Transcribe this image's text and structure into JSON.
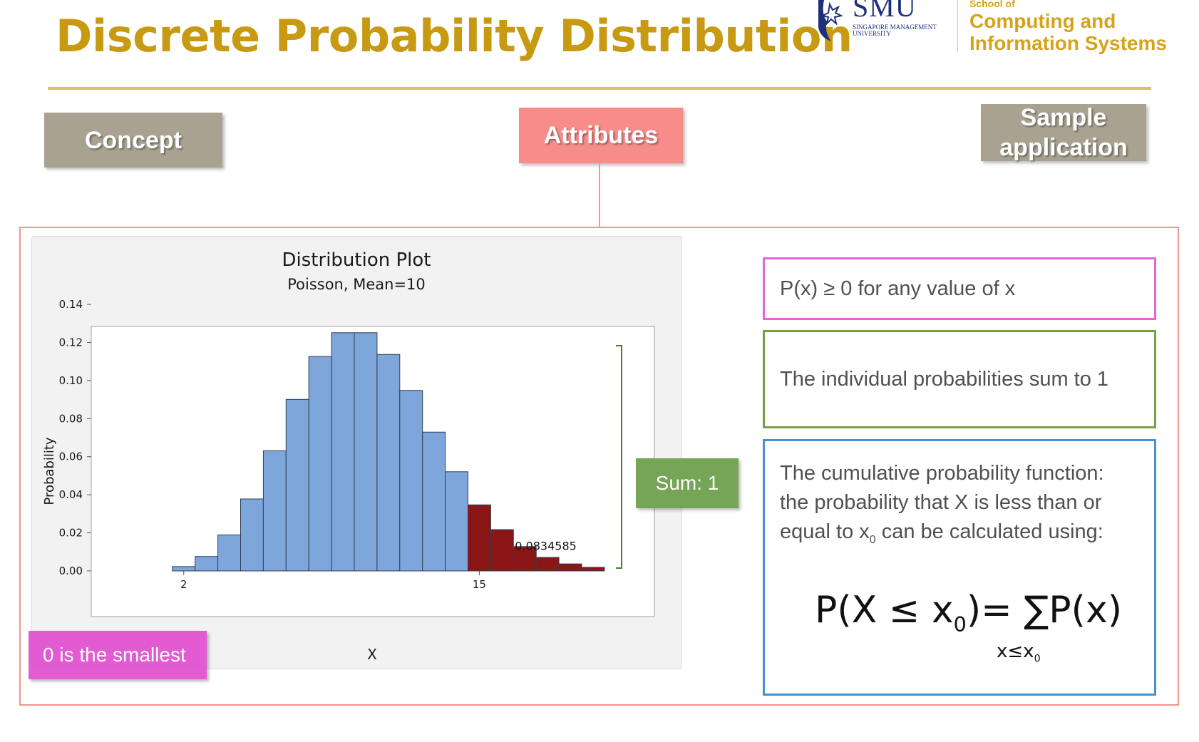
{
  "header": {
    "title": "Discrete Probability Distribution",
    "logo": {
      "wordmark": "SMU",
      "university": "SINGAPORE MANAGEMENT UNIVERSITY",
      "school_prefix": "School of",
      "school_name_line1": "Computing and",
      "school_name_line2": "Information Systems",
      "brand_blue": "#1d2f7c",
      "brand_gold": "#d6a21a"
    }
  },
  "tabs": {
    "concept": "Concept",
    "attributes": "Attributes",
    "sample_line1": "Sample",
    "sample_line2": "application"
  },
  "chart_data": {
    "type": "bar",
    "title": "Distribution Plot",
    "subtitle": "Poisson, Mean=10",
    "xlabel": "X",
    "ylabel": "Probability",
    "ylim": [
      0,
      0.14
    ],
    "yticks": [
      "0.00",
      "0.02",
      "0.04",
      "0.06",
      "0.08",
      "0.10",
      "0.12",
      "0.14"
    ],
    "xticks": [
      {
        "value": 2,
        "label": "2"
      },
      {
        "value": 15,
        "label": "15"
      }
    ],
    "x": [
      2,
      3,
      4,
      5,
      6,
      7,
      8,
      9,
      10,
      11,
      12,
      13,
      14,
      15,
      16,
      17,
      18,
      19,
      20
    ],
    "values": [
      0.0023,
      0.0076,
      0.0189,
      0.0378,
      0.0631,
      0.0901,
      0.1126,
      0.1251,
      0.1251,
      0.1137,
      0.0948,
      0.0729,
      0.0521,
      0.0347,
      0.0217,
      0.0128,
      0.0071,
      0.0037,
      0.0019
    ],
    "shaded_from_x": 15,
    "shaded_label": "0.0834585",
    "grid": false,
    "colors": {
      "base": "#7ea6da",
      "shaded": "#8b1616",
      "bar_edge": "#2f3f55",
      "bracket": "#4f7f25"
    }
  },
  "callouts": {
    "sum": "Sum: 1",
    "smallest": "0 is the smallest"
  },
  "properties": {
    "nonnegative": "P(x) ≥ 0 for any value of x",
    "sum_to_one": "The individual probabilities sum to 1",
    "cdf_line1": "The cumulative probability function:",
    "cdf_line2": "the probability that X is less than or",
    "cdf_line3_pre": "equal to x",
    "cdf_line3_sub": "0",
    "cdf_line3_post": " can be calculated using:",
    "formula_lhs_pre": "P(X ≤ x",
    "formula_lhs_sub": "0",
    "formula_lhs_post": ")= ∑P(x)",
    "formula_under_pre": "x≤x",
    "formula_under_sub": "0"
  },
  "colors": {
    "title_gold": "#c79a12",
    "attributes_tab": "#f88c8b",
    "inactive_tab": "#a9a291",
    "pink": "#e765d9",
    "green": "#77a043",
    "blue": "#4a8fcf"
  }
}
